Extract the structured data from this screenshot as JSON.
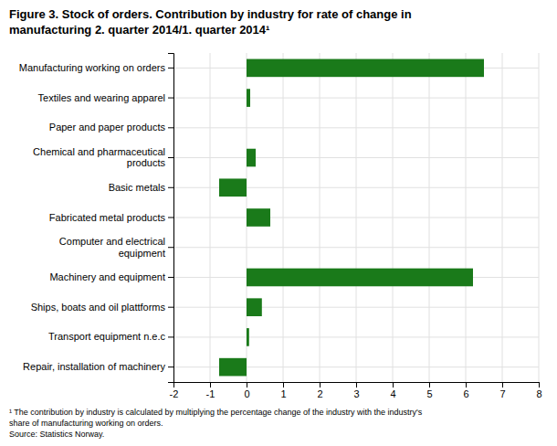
{
  "chart_data": {
    "type": "bar",
    "orientation": "horizontal",
    "title": "Figure 3. Stock of orders. Contribution by industry for rate of change in\nmanufacturing 2. quarter 2014/1. quarter 2014¹",
    "categories": [
      "Repair, installation of machinery",
      "Transport equipment n.e.c",
      "Ships, boats and oil plattforms",
      "Machinery and equipment",
      "Computer and electrical\nequipment",
      "Fabricated metal products",
      "Basic metals",
      "Chemical and pharmaceutical\nproducts",
      "Paper and paper products",
      "Textiles and wearing apparel",
      "Manufacturing working on orders"
    ],
    "values": [
      -0.75,
      0.07,
      0.42,
      6.2,
      0.0,
      0.65,
      -0.75,
      0.25,
      0.0,
      0.1,
      6.5
    ],
    "color": "#1a7a1a",
    "xlim": [
      -2,
      8
    ],
    "xticks": [
      -2,
      -1,
      0,
      1,
      2,
      3,
      4,
      5,
      6,
      7,
      8
    ],
    "grid": true,
    "annotations": [
      "¹ The contribution by industry is calculated by multiplying the percentage change of the industry with the industry's\nshare of manufacturing working on orders.\nSource: Statistics Norway."
    ]
  }
}
